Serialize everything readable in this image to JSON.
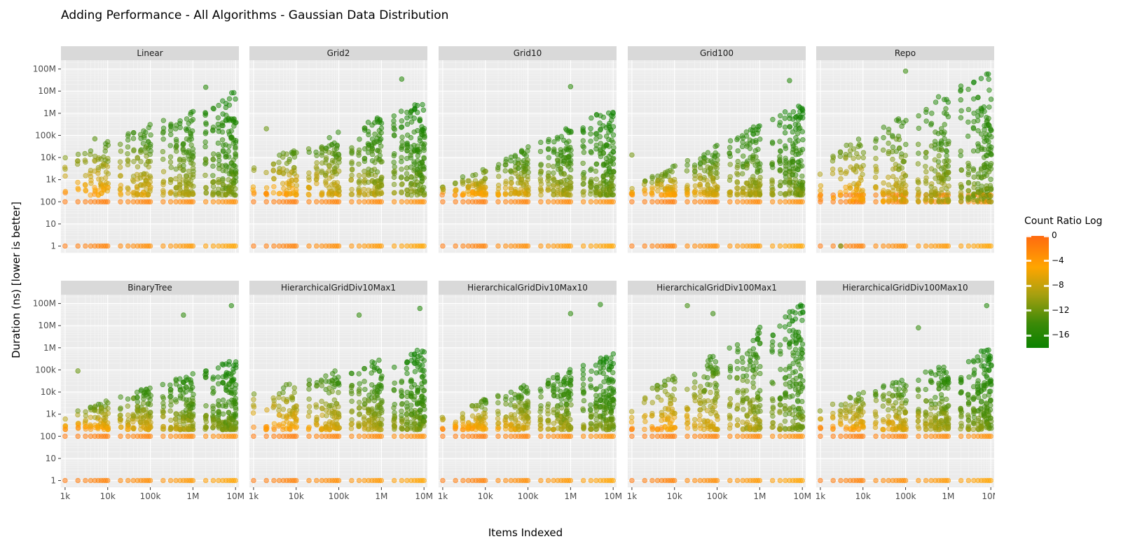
{
  "chart_data": {
    "type": "scatter",
    "title": "Adding Performance - All Algorithms - Gaussian Data Distribution",
    "xlabel": "Items Indexed",
    "ylabel": "Duration (ns) [lower is better]",
    "x_scale": "log10",
    "y_scale": "log10",
    "xlim": [
      800,
      12000000
    ],
    "ylim": [
      0.5,
      250000000
    ],
    "x_ticks": [
      1000,
      10000,
      100000,
      1000000,
      10000000
    ],
    "x_tick_labels": [
      "1k",
      "10k",
      "100k",
      "1M",
      "10M"
    ],
    "y_ticks": [
      1,
      10,
      100,
      1000,
      10000,
      100000,
      1000000,
      10000000,
      100000000
    ],
    "y_tick_labels": [
      "1",
      "10",
      "100",
      "1k",
      "10k",
      "100k",
      "1M",
      "10M",
      "100M"
    ],
    "x_values_sampled": [
      1000,
      2000,
      3000,
      4000,
      5000,
      6000,
      7000,
      8000,
      9000,
      10000,
      20000,
      30000,
      40000,
      50000,
      60000,
      70000,
      80000,
      90000,
      100000,
      200000,
      300000,
      400000,
      500000,
      600000,
      700000,
      800000,
      900000,
      1000000,
      2000000,
      3000000,
      4000000,
      5000000,
      6000000,
      7000000,
      8000000,
      9000000,
      10000000
    ],
    "color_scale": {
      "name": "Count Ratio Log",
      "range": [
        -18,
        0
      ],
      "ticks": [
        0,
        -4,
        -8,
        -12,
        -16
      ],
      "tick_labels": [
        "0",
        "−4",
        "−8",
        "−12",
        "−16"
      ],
      "colors": [
        "#ff6a10",
        "#ffa500",
        "#a8a010",
        "#3c8a08",
        "#0b8200"
      ]
    },
    "grid": true,
    "legend_position": "right",
    "facets": [
      {
        "name": "Linear",
        "floor_points": [
          100,
          1
        ],
        "cloud_low": 200,
        "cloud_high_small": 10000,
        "cloud_high_large": 10000000,
        "outliers": [
          [
            5000,
            70000
          ],
          [
            2000000,
            15000000
          ]
        ]
      },
      {
        "name": "Grid2",
        "floor_points": [
          100,
          1
        ],
        "cloud_low": 200,
        "cloud_high_small": 5000,
        "cloud_high_large": 4000000,
        "outliers": [
          [
            2000,
            200000
          ],
          [
            3000000,
            35000000
          ]
        ]
      },
      {
        "name": "Grid10",
        "floor_points": [
          100,
          1
        ],
        "cloud_low": 200,
        "cloud_high_small": 500,
        "cloud_high_large": 2000000,
        "outliers": [
          [
            1000000,
            16000000
          ]
        ]
      },
      {
        "name": "Grid100",
        "floor_points": [
          100,
          1
        ],
        "cloud_low": 200,
        "cloud_high_small": 500,
        "cloud_high_large": 3000000,
        "outliers": [
          [
            1000,
            13000
          ],
          [
            5000000,
            30000000
          ]
        ]
      },
      {
        "name": "Repo",
        "floor_points": [
          100,
          200,
          1
        ],
        "cloud_low": 100,
        "cloud_high_small": 10000,
        "cloud_high_large": 100000000,
        "outliers": [
          [
            100000,
            80000000
          ],
          [
            3000,
            1
          ]
        ]
      },
      {
        "name": "BinaryTree",
        "floor_points": [
          100,
          1
        ],
        "cloud_low": 200,
        "cloud_high_small": 1000,
        "cloud_high_large": 300000,
        "outliers": [
          [
            2000,
            90000
          ],
          [
            600000,
            30000000
          ],
          [
            8000000,
            80000000
          ]
        ]
      },
      {
        "name": "HierarchicalGridDiv10Max1",
        "floor_points": [
          100,
          1
        ],
        "cloud_low": 200,
        "cloud_high_small": 10000,
        "cloud_high_large": 1000000,
        "outliers": [
          [
            300000,
            30000000
          ],
          [
            8000000,
            60000000
          ]
        ]
      },
      {
        "name": "HierarchicalGridDiv10Max10",
        "floor_points": [
          100,
          1
        ],
        "cloud_low": 200,
        "cloud_high_small": 1000,
        "cloud_high_large": 600000,
        "outliers": [
          [
            1000000,
            35000000
          ],
          [
            5000000,
            90000000
          ]
        ]
      },
      {
        "name": "HierarchicalGridDiv100Max1",
        "floor_points": [
          100,
          1
        ],
        "cloud_low": 200,
        "cloud_high_small": 5000,
        "cloud_high_large": 100000000,
        "outliers": [
          [
            20000,
            80000000
          ],
          [
            80000,
            35000000
          ]
        ]
      },
      {
        "name": "HierarchicalGridDiv100Max10",
        "floor_points": [
          100,
          1
        ],
        "cloud_low": 200,
        "cloud_high_small": 2000,
        "cloud_high_large": 1000000,
        "outliers": [
          [
            200000,
            8000000
          ],
          [
            8000000,
            80000000
          ]
        ]
      }
    ]
  }
}
